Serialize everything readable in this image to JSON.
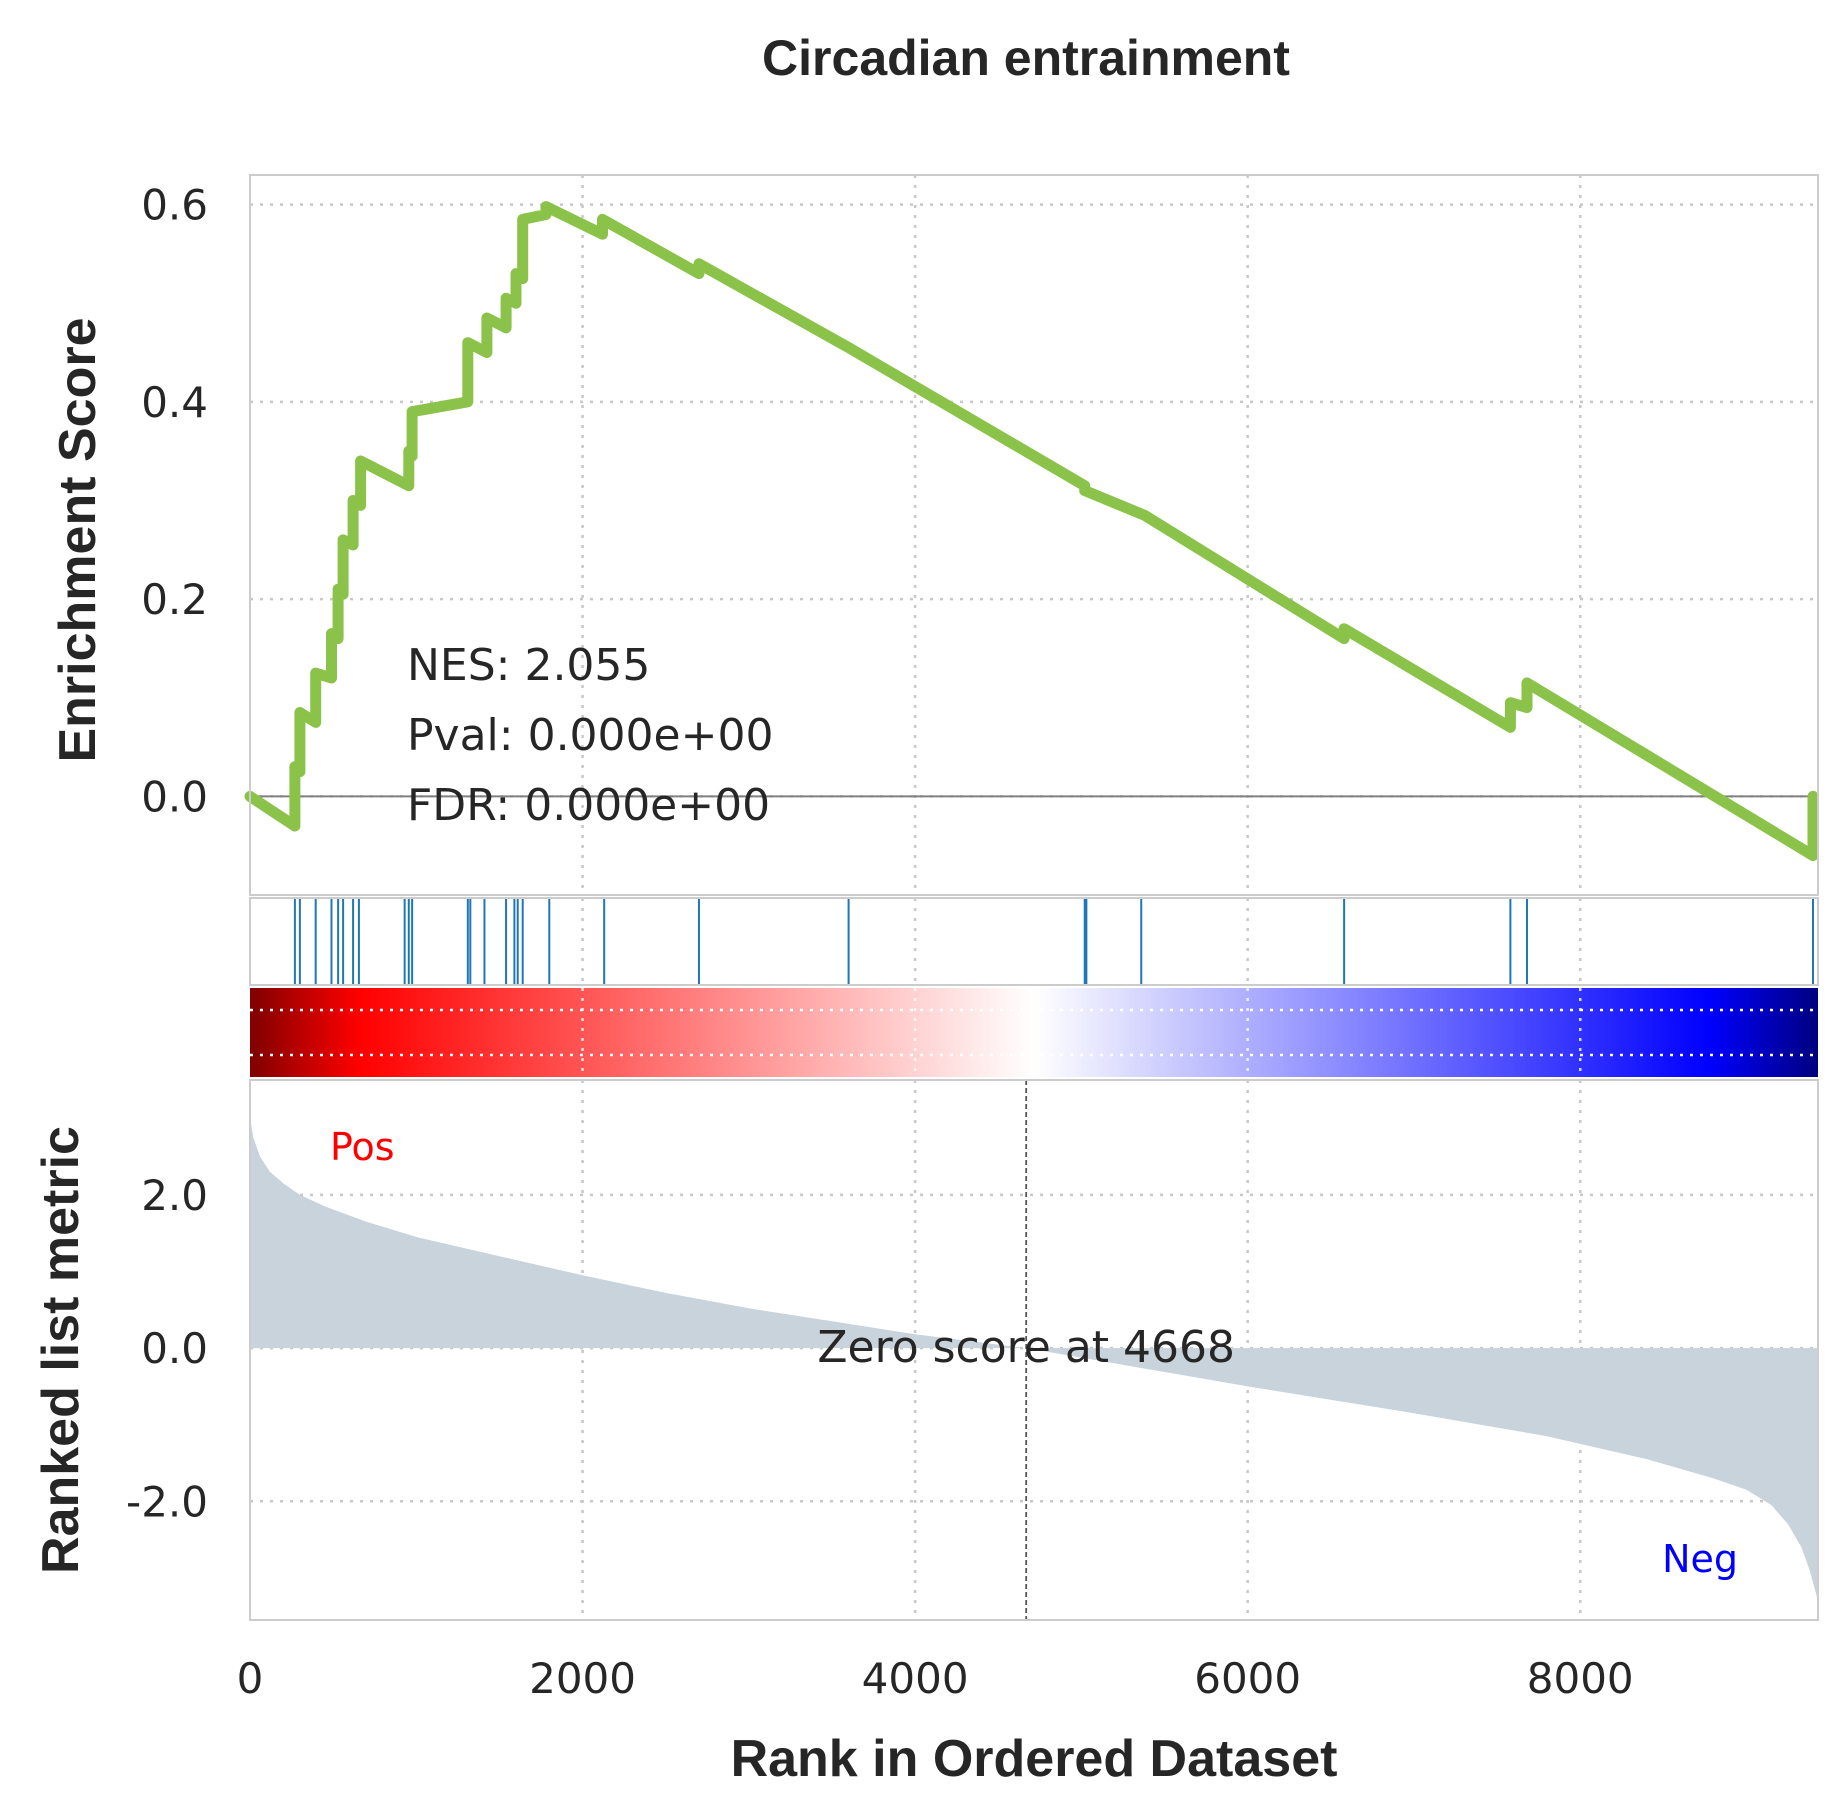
{
  "chart_data": {
    "type": "line",
    "title": "Circadian entrainment",
    "xlabel": "Rank in Ordered Dataset",
    "xlim": [
      0,
      9430
    ],
    "x_ticks": [
      0,
      2000,
      4000,
      6000,
      8000
    ],
    "x_tick_labels": [
      "0",
      "2000",
      "4000",
      "6000",
      "8000"
    ],
    "grid": true,
    "enrichment_panel": {
      "ylabel": "Enrichment Score",
      "ylim": [
        -0.1,
        0.63
      ],
      "y_ticks": [
        0.0,
        0.2,
        0.4,
        0.6
      ],
      "y_tick_labels": [
        "0.0",
        "0.2",
        "0.4",
        "0.6"
      ],
      "line_color": "#8bc34a",
      "es_curve": {
        "x": [
          0,
          270,
          270,
          300,
          300,
          395,
          395,
          490,
          490,
          530,
          530,
          560,
          560,
          620,
          620,
          665,
          665,
          955,
          955,
          975,
          975,
          1310,
          1310,
          1425,
          1425,
          1540,
          1540,
          1600,
          1600,
          1640,
          1640,
          1780,
          1780,
          2120,
          2120,
          2700,
          2700,
          3600,
          3600,
          5020,
          5020,
          5380,
          5380,
          6580,
          6580,
          7580,
          7580,
          7680,
          7680,
          9400,
          9400
        ],
        "y": [
          0.0,
          -0.03,
          0.03,
          0.025,
          0.085,
          0.075,
          0.125,
          0.12,
          0.165,
          0.16,
          0.21,
          0.205,
          0.26,
          0.255,
          0.3,
          0.295,
          0.34,
          0.315,
          0.35,
          0.345,
          0.39,
          0.4,
          0.46,
          0.45,
          0.485,
          0.475,
          0.505,
          0.5,
          0.53,
          0.525,
          0.585,
          0.59,
          0.598,
          0.57,
          0.585,
          0.53,
          0.54,
          0.455,
          0.455,
          0.315,
          0.31,
          0.285,
          0.285,
          0.16,
          0.17,
          0.07,
          0.095,
          0.09,
          0.115,
          -0.06,
          0.0
        ]
      },
      "annotations": {
        "nes": "NES: 2.055",
        "pval": "Pval: 0.000e+00",
        "fdr": "FDR: 0.000e+00"
      }
    },
    "hits_panel": {
      "hit_color": "#1f77b4",
      "hit_positions": [
        270,
        300,
        395,
        490,
        530,
        560,
        620,
        655,
        930,
        955,
        975,
        1310,
        1325,
        1410,
        1540,
        1590,
        1610,
        1640,
        1800,
        2130,
        2700,
        3600,
        5020,
        5030,
        5360,
        6580,
        7580,
        7680,
        9400
      ]
    },
    "colorbar": {
      "colors": [
        "#7f0000",
        "#ff0000",
        "#ffffff",
        "#0000ff",
        "#00007f"
      ]
    },
    "ranked_panel": {
      "ylabel": "Ranked list metric",
      "ylim": [
        -3.55,
        3.5
      ],
      "y_ticks": [
        2.0,
        0.0,
        -2.0
      ],
      "y_tick_labels": [
        "2.0",
        "0.0",
        "-2.0"
      ],
      "fill_color": "#c8d3dc",
      "metric_curve": {
        "x": [
          0,
          20,
          60,
          120,
          200,
          300,
          450,
          700,
          1000,
          1500,
          2000,
          2500,
          3000,
          3500,
          4000,
          4668,
          5200,
          6000,
          7000,
          7800,
          8400,
          8800,
          9000,
          9150,
          9250,
          9330,
          9380,
          9430
        ],
        "y": [
          3.0,
          2.75,
          2.5,
          2.3,
          2.15,
          2.0,
          1.85,
          1.65,
          1.45,
          1.2,
          0.95,
          0.72,
          0.52,
          0.35,
          0.18,
          0.0,
          -0.2,
          -0.5,
          -0.85,
          -1.15,
          -1.45,
          -1.7,
          -1.85,
          -2.05,
          -2.3,
          -2.6,
          -2.9,
          -3.3
        ]
      },
      "zero_score_x": 4668,
      "zero_label": "Zero score at 4668",
      "pos_label": "Pos",
      "pos_color": "#ff0000",
      "neg_label": "Neg",
      "neg_color": "#0000ff"
    }
  }
}
